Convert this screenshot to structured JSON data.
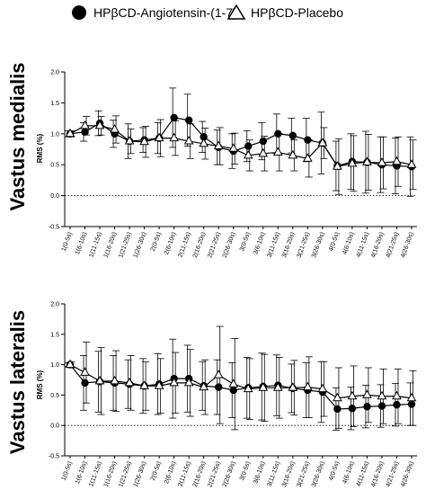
{
  "legend": {
    "position": "top",
    "entries": [
      {
        "label": "HPβCD-Angiotensin-(1-7)",
        "marker": "filled-circle"
      },
      {
        "label": "HPβCD-Placebo",
        "marker": "open-triangle"
      }
    ]
  },
  "chart_data": [
    {
      "type": "line",
      "title": "Vastus medialis",
      "ylabel": "RMS (%)",
      "ylim": [
        -0.5,
        2.0
      ],
      "yticks": [
        "-0.5",
        "0.0",
        "0.5",
        "1.0",
        "1.5",
        "2.0"
      ],
      "reference_line": 0.0,
      "categories": [
        "1(0-5s)",
        "1(6-10s)",
        "1(11-15s)",
        "1(16-20s)",
        "1(21-25s)",
        "1(26-30s)",
        "2(0-5s)",
        "2(6-10s)",
        "2(11-15s)",
        "2(16-20s)",
        "2(21-25s)",
        "2(26-30s)",
        "3(0-5s)",
        "3(6-10s)",
        "3(11-15s)",
        "3(16-20s)",
        "3(21-25s)",
        "3(26-30s)",
        "4(0-5s)",
        "4(6-10s)",
        "4(11-15s)",
        "4(16-20s)",
        "4(21-25s)",
        "4(26-30s)"
      ],
      "series": [
        {
          "name": "HPβCD-Angiotensin-(1-7)",
          "marker": "filled-circle",
          "values": [
            1.0,
            1.03,
            1.17,
            1.0,
            0.88,
            0.9,
            0.93,
            1.26,
            1.22,
            0.95,
            0.78,
            0.72,
            0.8,
            0.88,
            1.0,
            0.97,
            0.9,
            0.85,
            0.48,
            0.55,
            0.54,
            0.5,
            0.48,
            0.47
          ],
          "error": [
            0.05,
            0.15,
            0.2,
            0.22,
            0.28,
            0.2,
            0.25,
            0.48,
            0.42,
            0.25,
            0.28,
            0.28,
            0.25,
            0.3,
            0.32,
            0.28,
            0.35,
            0.5,
            0.4,
            0.45,
            0.5,
            0.45,
            0.45,
            0.48
          ]
        },
        {
          "name": "HPβCD-Placebo",
          "marker": "open-triangle",
          "values": [
            1.0,
            1.13,
            1.13,
            1.07,
            0.88,
            0.87,
            0.93,
            0.93,
            0.88,
            0.84,
            0.8,
            0.76,
            0.65,
            0.68,
            0.7,
            0.65,
            0.6,
            0.85,
            0.47,
            0.52,
            0.54,
            0.53,
            0.55,
            0.5
          ],
          "error": [
            0.05,
            0.15,
            0.15,
            0.22,
            0.2,
            0.25,
            0.3,
            0.28,
            0.28,
            0.25,
            0.3,
            0.25,
            0.25,
            0.28,
            0.3,
            0.25,
            0.3,
            0.25,
            0.45,
            0.45,
            0.45,
            0.42,
            0.4,
            0.4
          ]
        }
      ]
    },
    {
      "type": "line",
      "title": "Vastus lateralis",
      "ylabel": "RMS (%)",
      "ylim": [
        -0.5,
        2.0
      ],
      "yticks": [
        "-0.5",
        "0.0",
        "0.5",
        "1.0",
        "1.5",
        "2.0"
      ],
      "reference_line": 0.0,
      "categories": [
        "1(0-5s)",
        "1(6-10s)",
        "1(11-15s)",
        "1(16-20s)",
        "1(21-25s)",
        "1(26-30s)",
        "2(0-5s)",
        "2(6-10s)",
        "2(11-15s)",
        "2(16-20s)",
        "2(21-25s)",
        "2(26-30s)",
        "3(0-5s)",
        "3(6-10s)",
        "3(11-15s)",
        "3(16-20s)",
        "3(21-25s)",
        "3(26-30s)",
        "4(0-5s)",
        "4(6-10s)",
        "4(11-15s)",
        "4(16-20s)",
        "4(21-25s)",
        "4(26-30s)"
      ],
      "series": [
        {
          "name": "HPβCD-Angiotensin-(1-7)",
          "marker": "filled-circle",
          "values": [
            1.0,
            0.7,
            0.72,
            0.7,
            0.68,
            0.65,
            0.68,
            0.77,
            0.77,
            0.65,
            0.63,
            0.58,
            0.62,
            0.64,
            0.66,
            0.61,
            0.58,
            0.55,
            0.27,
            0.28,
            0.31,
            0.32,
            0.34,
            0.35
          ],
          "error": [
            0.03,
            0.45,
            0.5,
            0.45,
            0.4,
            0.45,
            0.5,
            0.65,
            0.55,
            0.4,
            0.45,
            0.45,
            0.5,
            0.55,
            0.5,
            0.4,
            0.45,
            0.5,
            0.35,
            0.35,
            0.35,
            0.35,
            0.35,
            0.35
          ]
        },
        {
          "name": "HPβCD-Placebo",
          "marker": "open-triangle",
          "values": [
            1.0,
            0.87,
            0.73,
            0.73,
            0.7,
            0.65,
            0.65,
            0.7,
            0.7,
            0.63,
            0.83,
            0.68,
            0.6,
            0.62,
            0.62,
            0.62,
            0.63,
            0.6,
            0.45,
            0.48,
            0.5,
            0.48,
            0.48,
            0.45
          ],
          "error": [
            0.05,
            0.5,
            0.55,
            0.5,
            0.45,
            0.4,
            0.45,
            0.5,
            0.55,
            0.45,
            0.8,
            0.75,
            0.5,
            0.55,
            0.5,
            0.45,
            0.5,
            0.45,
            0.5,
            0.5,
            0.45,
            0.45,
            0.45,
            0.45
          ]
        }
      ]
    }
  ]
}
